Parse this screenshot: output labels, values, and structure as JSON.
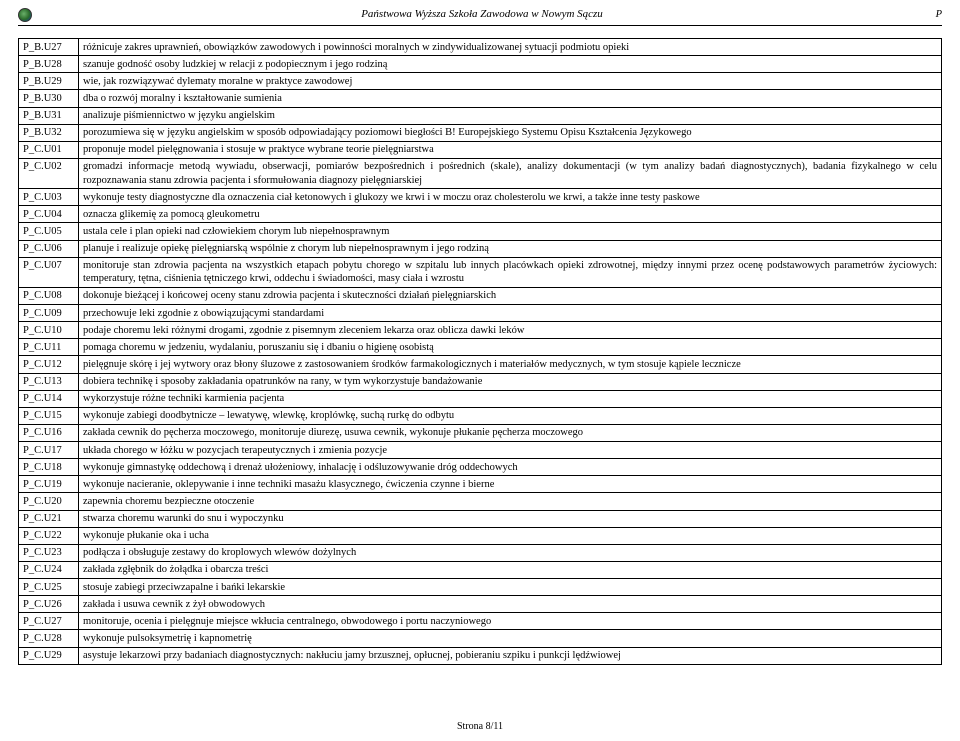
{
  "header": {
    "institution": "Państwowa Wyższa Szkoła Zawodowa w Nowym Sączu",
    "right": "P"
  },
  "footer": {
    "page": "Strona 8/11"
  },
  "rows": [
    {
      "code": "P_B.U27",
      "desc": "różnicuje zakres uprawnień, obowiązków zawodowych i powinności moralnych w zindywidualizowanej sytuacji podmiotu opieki"
    },
    {
      "code": "P_B.U28",
      "desc": "szanuje godność osoby ludzkiej w relacji z podopiecznym i jego rodziną"
    },
    {
      "code": "P_B.U29",
      "desc": "wie, jak rozwiązywać dylematy moralne w praktyce zawodowej"
    },
    {
      "code": "P_B.U30",
      "desc": "dba o rozwój moralny i kształtowanie sumienia"
    },
    {
      "code": "P_B.U31",
      "desc": "analizuje piśmiennictwo w języku angielskim"
    },
    {
      "code": "P_B.U32",
      "desc": "porozumiewa się w języku angielskim w sposób odpowiadający poziomowi biegłości B! Europejskiego Systemu Opisu Kształcenia Językowego"
    },
    {
      "code": "P_C.U01",
      "desc": "proponuje model pielęgnowania i stosuje w praktyce wybrane teorie pielęgniarstwa"
    },
    {
      "code": "P_C.U02",
      "desc": "gromadzi informacje metodą wywiadu, obserwacji, pomiarów bezpośrednich i pośrednich (skale), analizy dokumentacji (w tym analizy badań diagnostycznych), badania fizykalnego w celu rozpoznawania stanu zdrowia pacjenta i sformułowania diagnozy pielęgniarskiej"
    },
    {
      "code": "P_C.U03",
      "desc": "wykonuje testy diagnostyczne dla oznaczenia ciał ketonowych i glukozy we krwi i w moczu oraz cholesterolu we krwi, a także inne testy paskowe"
    },
    {
      "code": "P_C.U04",
      "desc": "oznacza glikemię za pomocą gleukometru"
    },
    {
      "code": "P_C.U05",
      "desc": "ustala cele i plan opieki nad człowiekiem chorym lub niepełnosprawnym"
    },
    {
      "code": "P_C.U06",
      "desc": "planuje i realizuje opiekę pielęgniarską wspólnie z chorym lub niepełnosprawnym i jego rodziną"
    },
    {
      "code": "P_C.U07",
      "desc": "monitoruje stan zdrowia pacjenta na wszystkich etapach pobytu chorego w szpitalu lub innych placówkach opieki zdrowotnej, między innymi przez ocenę podstawowych parametrów życiowych: temperatury, tętna, ciśnienia tętniczego krwi, oddechu i świadomości, masy ciała i wzrostu"
    },
    {
      "code": "P_C.U08",
      "desc": "dokonuje bieżącej i końcowej oceny stanu zdrowia pacjenta i skuteczności działań pielęgniarskich"
    },
    {
      "code": "P_C.U09",
      "desc": "przechowuje leki zgodnie z obowiązującymi standardami"
    },
    {
      "code": "P_C.U10",
      "desc": "podaje choremu leki różnymi drogami, zgodnie z pisemnym zleceniem lekarza oraz oblicza dawki leków"
    },
    {
      "code": "P_C.U11",
      "desc": "pomaga choremu w jedzeniu, wydalaniu, poruszaniu się i dbaniu o higienę osobistą"
    },
    {
      "code": "P_C.U12",
      "desc": "pielęgnuje skórę i jej wytwory oraz błony śluzowe z zastosowaniem środków farmakologicznych i materiałów medycznych, w tym stosuje kąpiele lecznicze"
    },
    {
      "code": "P_C.U13",
      "desc": "dobiera technikę i sposoby zakładania opatrunków na rany, w tym wykorzystuje bandażowanie"
    },
    {
      "code": "P_C.U14",
      "desc": "wykorzystuje różne techniki karmienia pacjenta"
    },
    {
      "code": "P_C.U15",
      "desc": "wykonuje zabiegi doodbytnicze – lewatywę, wlewkę, kroplówkę, suchą rurkę do odbytu"
    },
    {
      "code": "P_C.U16",
      "desc": "zakłada cewnik do pęcherza moczowego, monitoruje diurezę, usuwa cewnik, wykonuje płukanie pęcherza moczowego"
    },
    {
      "code": "P_C.U17",
      "desc": "układa chorego w łóżku w pozycjach terapeutycznych i zmienia pozycje"
    },
    {
      "code": "P_C.U18",
      "desc": "wykonuje gimnastykę oddechową i drenaż ułożeniowy, inhalację i odśluzowywanie dróg oddechowych"
    },
    {
      "code": "P_C.U19",
      "desc": "wykonuje nacieranie, oklepywanie i inne techniki masażu klasycznego, ćwiczenia czynne i bierne"
    },
    {
      "code": "P_C.U20",
      "desc": "zapewnia choremu bezpieczne otoczenie"
    },
    {
      "code": "P_C.U21",
      "desc": "stwarza choremu warunki do snu i wypoczynku"
    },
    {
      "code": "P_C.U22",
      "desc": "wykonuje płukanie oka i ucha"
    },
    {
      "code": "P_C.U23",
      "desc": "podłącza i obsługuje zestawy do kroplowych wlewów dożylnych"
    },
    {
      "code": "P_C.U24",
      "desc": "zakłada zgłębnik do żołądka i obarcza treści"
    },
    {
      "code": "P_C.U25",
      "desc": "stosuje zabiegi przeciwzapalne i bańki lekarskie"
    },
    {
      "code": "P_C.U26",
      "desc": "zakłada i usuwa cewnik z żył obwodowych"
    },
    {
      "code": "P_C.U27",
      "desc": "monitoruje, ocenia i pielęgnuje miejsce wkłucia centralnego, obwodowego i portu naczyniowego"
    },
    {
      "code": "P_C.U28",
      "desc": "wykonuje pulsoksymetrię i kapnometrię"
    },
    {
      "code": "P_C.U29",
      "desc": "asystuje lekarzowi przy badaniach diagnostycznych: nakłuciu jamy brzusznej, opłucnej, pobieraniu szpiku i punkcji lędźwiowej"
    }
  ]
}
